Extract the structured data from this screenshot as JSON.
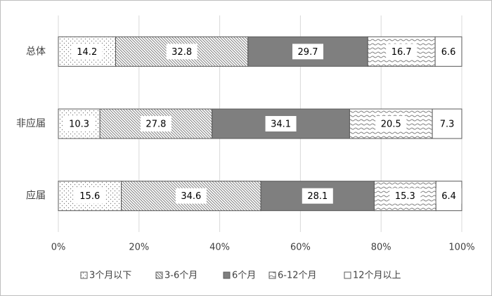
{
  "chart_data": {
    "type": "stacked_barh",
    "categories": [
      "总体",
      "非应届",
      "应届"
    ],
    "series": [
      {
        "name": "3个月以下",
        "color": "#ffffff",
        "pattern": "dots",
        "values": [
          14.2,
          10.3,
          15.6
        ]
      },
      {
        "name": "3-6个月",
        "color": "#ffffff",
        "pattern": "diagonal",
        "values": [
          32.8,
          27.8,
          34.6
        ]
      },
      {
        "name": "6个月",
        "color": "#7f7f7f",
        "pattern": "solid",
        "values": [
          29.7,
          34.1,
          28.1
        ]
      },
      {
        "name": "6-12个月",
        "color": "#ffffff",
        "pattern": "waves",
        "values": [
          16.7,
          20.5,
          15.3
        ]
      },
      {
        "name": "12个月以上",
        "color": "#ffffff",
        "pattern": "none",
        "values": [
          6.6,
          7.3,
          6.4
        ]
      }
    ],
    "xlim": [
      0,
      100
    ],
    "xticks": [
      {
        "value": 0,
        "label": "0%"
      },
      {
        "value": 20,
        "label": "20%"
      },
      {
        "value": 40,
        "label": "40%"
      },
      {
        "value": 60,
        "label": "60%"
      },
      {
        "value": 80,
        "label": "80%"
      },
      {
        "value": 100,
        "label": "100%"
      }
    ],
    "grid": true,
    "legend": "bottom"
  }
}
